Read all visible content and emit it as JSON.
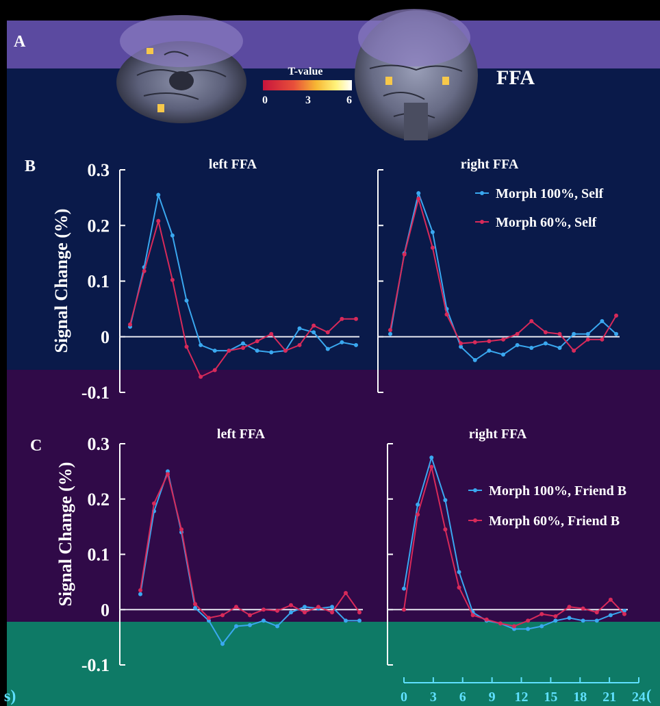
{
  "panel_labels": {
    "a": "A",
    "b": "B",
    "c": "C"
  },
  "colorbar": {
    "title": "T-value",
    "ticks": [
      "0",
      "3",
      "6"
    ],
    "colors": [
      "#c8143c",
      "#e8503a",
      "#f7b733",
      "#fff27a",
      "#ffffff"
    ]
  },
  "region_label": "FFA",
  "x_axis_ticks": [
    "0",
    "3",
    "6",
    "9",
    "12",
    "15",
    "18",
    "21",
    "24"
  ],
  "x_axis_edge": "(",
  "x_axis_left_fragment": "s)",
  "colors": {
    "series_blue": "#3aa8f0",
    "series_red": "#d82a5a",
    "band_top": "#0a1a4a",
    "band_mid": "#300a48",
    "band_bottom": "#0e7a66",
    "axis": "#ffffff",
    "accent": "#5fe0ff"
  },
  "chart_data": [
    {
      "type": "line",
      "panel": "B",
      "title": "left FFA",
      "ylabel": "Signal Change (%)",
      "yticks": [
        "0.3",
        "0.2",
        "0.1",
        "0",
        "-0.1"
      ],
      "ylim": [
        -0.1,
        0.3
      ],
      "xlim": [
        0,
        24
      ],
      "x": [
        0,
        1.5,
        3,
        4.5,
        6,
        7.5,
        9,
        10.5,
        12,
        13.5,
        15,
        16.5,
        18,
        19.5,
        21,
        22.5,
        24
      ],
      "series": [
        {
          "name": "Morph 100%, Self",
          "values": [
            0.018,
            0.125,
            0.255,
            0.182,
            0.065,
            -0.015,
            -0.025,
            -0.025,
            -0.012,
            -0.025,
            -0.028,
            -0.025,
            0.015,
            0.008,
            -0.022,
            -0.01,
            -0.015
          ]
        },
        {
          "name": "Morph 60%, Self",
          "values": [
            0.022,
            0.118,
            0.208,
            0.102,
            -0.018,
            -0.072,
            -0.06,
            -0.025,
            -0.02,
            -0.008,
            0.005,
            -0.025,
            -0.015,
            0.02,
            0.008,
            0.032,
            0.032
          ]
        }
      ]
    },
    {
      "type": "line",
      "panel": "B",
      "title": "right FFA",
      "ylim": [
        -0.1,
        0.3
      ],
      "xlim": [
        0,
        24
      ],
      "x": [
        0,
        1.5,
        3,
        4.5,
        6,
        7.5,
        9,
        10.5,
        12,
        13.5,
        15,
        16.5,
        18,
        19.5,
        21,
        22.5,
        24
      ],
      "series": [
        {
          "name": "Morph 100%, Self",
          "values": [
            0.005,
            0.15,
            0.258,
            0.188,
            0.05,
            -0.018,
            -0.042,
            -0.025,
            -0.032,
            -0.015,
            -0.02,
            -0.012,
            -0.02,
            0.005,
            0.005,
            0.028,
            0.005
          ]
        },
        {
          "name": "Morph 60%, Self",
          "values": [
            0.012,
            0.148,
            0.248,
            0.16,
            0.04,
            -0.012,
            -0.01,
            -0.008,
            -0.005,
            0.005,
            0.028,
            0.008,
            0.005,
            -0.025,
            -0.005,
            -0.005,
            0.038
          ]
        }
      ]
    },
    {
      "type": "line",
      "panel": "C",
      "title": "left FFA",
      "ylabel": "Signal Change (%)",
      "yticks": [
        "0.3",
        "0.2",
        "0.1",
        "0",
        "-0.1"
      ],
      "ylim": [
        -0.1,
        0.3
      ],
      "xlim": [
        0,
        24
      ],
      "x": [
        0,
        1.5,
        3,
        4.5,
        6,
        7.5,
        9,
        10.5,
        12,
        13.5,
        15,
        16.5,
        18,
        19.5,
        21,
        22.5,
        24
      ],
      "series": [
        {
          "name": "Morph 100%, Friend B",
          "values": [
            0.028,
            0.178,
            0.25,
            0.14,
            0.003,
            -0.02,
            -0.062,
            -0.03,
            -0.028,
            -0.02,
            -0.03,
            -0.005,
            0.005,
            0.002,
            0.005,
            -0.02,
            -0.02
          ]
        },
        {
          "name": "Morph 60%, Friend B",
          "values": [
            0.035,
            0.192,
            0.245,
            0.145,
            0.01,
            -0.015,
            -0.01,
            0.005,
            -0.01,
            0.0,
            -0.002,
            0.008,
            -0.005,
            0.005,
            -0.005,
            0.03,
            -0.005
          ]
        }
      ]
    },
    {
      "type": "line",
      "panel": "C",
      "title": "right FFA",
      "ylim": [
        -0.1,
        0.3
      ],
      "xlim": [
        0,
        24
      ],
      "x": [
        0,
        1.5,
        3,
        4.5,
        6,
        7.5,
        9,
        10.5,
        12,
        13.5,
        15,
        16.5,
        18,
        19.5,
        21,
        22.5,
        24
      ],
      "series": [
        {
          "name": "Morph 100%, Friend B",
          "values": [
            0.038,
            0.19,
            0.275,
            0.198,
            0.068,
            -0.005,
            -0.02,
            -0.025,
            -0.035,
            -0.035,
            -0.03,
            -0.02,
            -0.015,
            -0.02,
            -0.02,
            -0.01,
            -0.002
          ]
        },
        {
          "name": "Morph 60%, Friend B",
          "values": [
            0.0,
            0.172,
            0.258,
            0.145,
            0.04,
            -0.01,
            -0.018,
            -0.025,
            -0.03,
            -0.02,
            -0.008,
            -0.012,
            0.005,
            0.002,
            -0.005,
            0.018,
            -0.008
          ]
        }
      ]
    }
  ]
}
